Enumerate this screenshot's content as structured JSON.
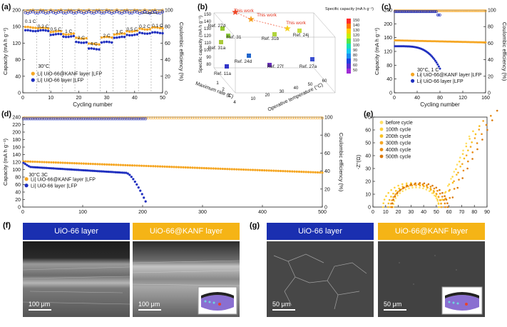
{
  "figure": {
    "panel_letters": [
      "(a)",
      "(b)",
      "(c)",
      "(d)",
      "(e)",
      "(f)",
      "(g)"
    ]
  },
  "colors": {
    "orange": "#f5a623",
    "blue": "#1f2fbf",
    "sem_left": "#1a2fb0",
    "sem_right": "#f5b416"
  },
  "chart_data": [
    {
      "panel": "(a)",
      "type": "scatter",
      "xlabel": "Cycling number",
      "ylabel": "Capacity (mA h g⁻¹)",
      "y2label": "Coulombic efficiency (%)",
      "xlim": [
        0,
        55
      ],
      "ylim": [
        0,
        200
      ],
      "y2lim": [
        0,
        100
      ],
      "xticks": [
        "0",
        "10",
        "20",
        "30",
        "40",
        "50"
      ],
      "yticks": [
        "0",
        "40",
        "80",
        "120",
        "160",
        "200"
      ],
      "y2ticks": [
        "0",
        "20",
        "40",
        "60",
        "80",
        "100"
      ],
      "rate_labels": [
        "0.1 C",
        "0.2 C",
        "0.5 C",
        "1 C",
        "2 C",
        "4 C",
        "2 C",
        "1 C",
        "0.5 C",
        "0.2 C",
        "0.1 C"
      ],
      "annotation": "30°C",
      "series": [
        {
          "name": "Li| UiO-66@KANF layer |LFP",
          "color": "orange",
          "steps": [
            [
              1,
              5,
              158
            ],
            [
              6,
              10,
              156
            ],
            [
              11,
              15,
              148
            ],
            [
              16,
              20,
              142
            ],
            [
              21,
              25,
              132
            ],
            [
              26,
              30,
              118
            ],
            [
              31,
              35,
              134
            ],
            [
              36,
              40,
              142
            ],
            [
              41,
              45,
              149
            ],
            [
              46,
              50,
              154
            ],
            [
              51,
              55,
              157
            ]
          ]
        },
        {
          "name": "Li| UiO-66 layer |LFP",
          "color": "blue",
          "steps": [
            [
              1,
              5,
              150
            ],
            [
              6,
              10,
              150
            ],
            [
              11,
              15,
              141
            ],
            [
              16,
              20,
              136
            ],
            [
              21,
              25,
              122
            ],
            [
              26,
              30,
              106
            ],
            [
              31,
              35,
              122
            ],
            [
              36,
              40,
              134
            ],
            [
              41,
              45,
              140
            ],
            [
              46,
              50,
              144
            ],
            [
              51,
              55,
              145
            ]
          ]
        }
      ],
      "ce": 98
    },
    {
      "panel": "(b)",
      "type": "scatter",
      "xlabel": "Maximum rate (C)",
      "ylabel": "Specific capacity (mA h g⁻¹)",
      "zlabel": "Operative temperature (°C)",
      "colorbar_label": "Specific capacity (mA h g⁻¹)",
      "colorbar_ticks": [
        "150",
        "140",
        "130",
        "120",
        "110",
        "100",
        "90",
        "80",
        "70",
        "60",
        "50"
      ],
      "yticks": [
        "150",
        "140",
        "130",
        "120",
        "110",
        "100",
        "90",
        "80"
      ],
      "xticks": [
        "1",
        "2",
        "3",
        "4"
      ],
      "zticks": [
        "10",
        "20",
        "30",
        "40",
        "50",
        "60"
      ],
      "points": [
        "This work",
        "This work",
        "This work",
        "Ref. 27d",
        "Ref. 31",
        "Ref. 31a",
        "Ref. 31b",
        "Ref. 24j",
        "Ref. 24d",
        "Ref. 27f",
        "Ref. 11a",
        "Ref. 27a"
      ]
    },
    {
      "panel": "(c)",
      "type": "scatter",
      "xlabel": "Cycling number",
      "ylabel": "Capacity (mA h g⁻¹)",
      "y2label": "Coulombic efficiency (%)",
      "xlim": [
        0,
        160
      ],
      "ylim": [
        0,
        240
      ],
      "y2lim": [
        0,
        100
      ],
      "xticks": [
        "0",
        "40",
        "80",
        "120",
        "160"
      ],
      "yticks": [
        "0",
        "40",
        "80",
        "120",
        "160",
        "200",
        "240"
      ],
      "y2ticks": [
        "0",
        "20",
        "40",
        "60",
        "80",
        "100"
      ],
      "annotation": "30°C, 1 C",
      "series": [
        {
          "name": "Li| UiO-66@KANF layer |LFP",
          "color": "orange",
          "x": [
            1,
            160
          ],
          "cap": [
            152,
            146
          ],
          "ce": 99
        },
        {
          "name": "Li| UiO-66 layer |LFP",
          "color": "blue",
          "x": [
            1,
            80
          ],
          "cap": [
            135,
            70
          ],
          "ce": 98
        }
      ]
    },
    {
      "panel": "(d)",
      "type": "scatter",
      "xlabel": "Cycling number",
      "ylabel": "Capacity (mA h g⁻¹)",
      "y2label": "Coulombic efficiency (%)",
      "xlim": [
        0,
        500
      ],
      "ylim": [
        0,
        240
      ],
      "y2lim": [
        0,
        100
      ],
      "xticks": [
        "0",
        "100",
        "200",
        "300",
        "400",
        "500"
      ],
      "yticks": [
        "0",
        "20",
        "40",
        "60",
        "80",
        "100",
        "120",
        "140",
        "160",
        "180",
        "200",
        "220",
        "240"
      ],
      "y2ticks": [
        "0",
        "20",
        "40",
        "60",
        "80",
        "100"
      ],
      "annotation": "30°C 3C",
      "series": [
        {
          "name": "Li| UiO-66@KANF layer |LFP",
          "color": "orange",
          "x": [
            1,
            500
          ],
          "cap": [
            122,
            92
          ],
          "ce": 99
        },
        {
          "name": "Li| UiO-66 layer |LFP",
          "color": "blue",
          "x": [
            1,
            205
          ],
          "cap": [
            118,
            15
          ],
          "ce": 98
        }
      ]
    },
    {
      "panel": "(e)",
      "type": "scatter",
      "xlabel": "Z'(Ω)",
      "ylabel": "-Z''(Ω)",
      "xlim": [
        0,
        90
      ],
      "ylim": [
        0,
        70
      ],
      "xticks": [
        "0",
        "10",
        "20",
        "30",
        "40",
        "50",
        "60",
        "70",
        "80",
        "90"
      ],
      "yticks": [
        "0",
        "10",
        "20",
        "30",
        "40",
        "50",
        "60",
        "70"
      ],
      "series": [
        {
          "name": "before cycle",
          "color": "#ffe066",
          "center": 34,
          "radius": 18
        },
        {
          "name": "100th cycle",
          "color": "#ffd23a",
          "center": 30,
          "radius": 22
        },
        {
          "name": "200th cycle",
          "color": "#f9c01f",
          "center": 33,
          "radius": 21
        },
        {
          "name": "300th cycle",
          "color": "#f5a623",
          "center": 34,
          "radius": 20
        },
        {
          "name": "400th cycle",
          "color": "#e98b12",
          "center": 36,
          "radius": 21
        },
        {
          "name": "500th cycle",
          "color": "#d97706",
          "center": 37,
          "radius": 22
        }
      ]
    }
  ],
  "sem": {
    "f": {
      "left_title": "UiO-66 layer",
      "right_title": "UiO-66@KANF layer",
      "scale": "100 μm"
    },
    "g": {
      "left_title": "UiO-66 layer",
      "right_title": "UiO-66@KANF layer",
      "scale": "50 μm"
    }
  }
}
